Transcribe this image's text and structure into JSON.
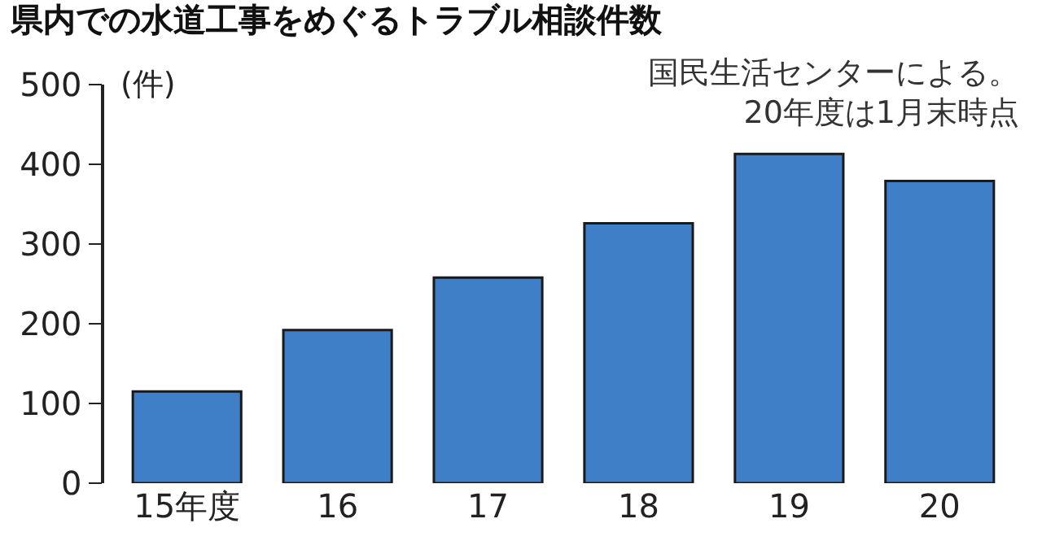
{
  "chart_data": {
    "type": "bar",
    "title": "県内での水道工事をめぐるトラブル相談件数",
    "ylabel": "(件)",
    "annotations": [
      "国民生活センターによる。",
      "20年度は1月末時点"
    ],
    "categories": [
      "15年度",
      "16",
      "17",
      "18",
      "19",
      "20"
    ],
    "values": [
      115,
      192,
      258,
      326,
      413,
      379
    ],
    "color": "#3f7fc8",
    "ylim": [
      0,
      500
    ],
    "yticks": [
      0,
      100,
      200,
      300,
      400,
      500
    ]
  }
}
